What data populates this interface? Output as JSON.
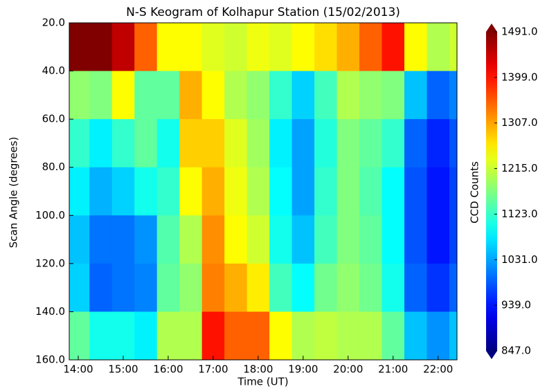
{
  "chart_data": {
    "type": "heatmap",
    "title": "N-S Keogram of Kolhapur Station (15/02/2013)",
    "x_label": "Time (UT)",
    "y_label": "Scan Angle (degrees)",
    "colorbar_label": "CCD Counts",
    "colormap": "jet",
    "x": [
      14,
      14.5,
      15,
      15.5,
      16,
      16.5,
      17,
      17.5,
      18,
      18.5,
      19,
      19.5,
      20,
      20.5,
      21,
      21.5,
      22,
      22.5
    ],
    "y": [
      30,
      50,
      70,
      90,
      110,
      130,
      150
    ],
    "values": [
      [
        1491,
        1491,
        1450,
        1350,
        1250,
        1250,
        1230,
        1220,
        1240,
        1230,
        1250,
        1270,
        1300,
        1350,
        1400,
        1250,
        1200,
        1220
      ],
      [
        1180,
        1170,
        1250,
        1150,
        1150,
        1300,
        1250,
        1200,
        1180,
        1120,
        1060,
        1130,
        1200,
        1180,
        1170,
        1050,
        990,
        1010
      ],
      [
        1120,
        1080,
        1120,
        1150,
        1100,
        1280,
        1280,
        1230,
        1190,
        1080,
        1030,
        1110,
        1170,
        1150,
        1120,
        990,
        950,
        980
      ],
      [
        1080,
        1040,
        1060,
        1100,
        1120,
        1250,
        1300,
        1240,
        1200,
        1090,
        1030,
        1120,
        1170,
        1140,
        1090,
        980,
        940,
        970
      ],
      [
        1050,
        1000,
        1000,
        1020,
        1140,
        1200,
        1320,
        1250,
        1220,
        1100,
        1050,
        1130,
        1170,
        1150,
        1090,
        980,
        940,
        970
      ],
      [
        1060,
        990,
        1000,
        1010,
        1150,
        1180,
        1330,
        1300,
        1260,
        1130,
        1090,
        1160,
        1180,
        1160,
        1100,
        990,
        960,
        990
      ],
      [
        1150,
        1100,
        1100,
        1080,
        1200,
        1200,
        1400,
        1350,
        1350,
        1250,
        1200,
        1210,
        1200,
        1200,
        1150,
        1050,
        1020,
        1050
      ]
    ],
    "xlim": [
      13.8,
      22.42
    ],
    "ylim": [
      160,
      20
    ],
    "clim": [
      847,
      1491
    ],
    "xticks": [
      {
        "value": 14,
        "label": "14:00"
      },
      {
        "value": 15,
        "label": "15:00"
      },
      {
        "value": 16,
        "label": "16:00"
      },
      {
        "value": 17,
        "label": "17:00"
      },
      {
        "value": 18,
        "label": "18:00"
      },
      {
        "value": 19,
        "label": "19:00"
      },
      {
        "value": 20,
        "label": "20:00"
      },
      {
        "value": 21,
        "label": "21:00"
      },
      {
        "value": 22,
        "label": "22:00"
      }
    ],
    "yticks": [
      {
        "value": 20,
        "label": "20.0"
      },
      {
        "value": 40,
        "label": "40.0"
      },
      {
        "value": 60,
        "label": "60.0"
      },
      {
        "value": 80,
        "label": "80.0"
      },
      {
        "value": 100,
        "label": "100.0"
      },
      {
        "value": 120,
        "label": "120.0"
      },
      {
        "value": 140,
        "label": "140.0"
      },
      {
        "value": 160,
        "label": "160.0"
      }
    ],
    "cticks": [
      {
        "value": 847,
        "label": "847.0"
      },
      {
        "value": 939,
        "label": "939.0"
      },
      {
        "value": 1031,
        "label": "1031.0"
      },
      {
        "value": 1123,
        "label": "1123.0"
      },
      {
        "value": 1215,
        "label": "1215.0"
      },
      {
        "value": 1307,
        "label": "1307.0"
      },
      {
        "value": 1399,
        "label": "1399.0"
      },
      {
        "value": 1491,
        "label": "1491.0"
      }
    ]
  }
}
